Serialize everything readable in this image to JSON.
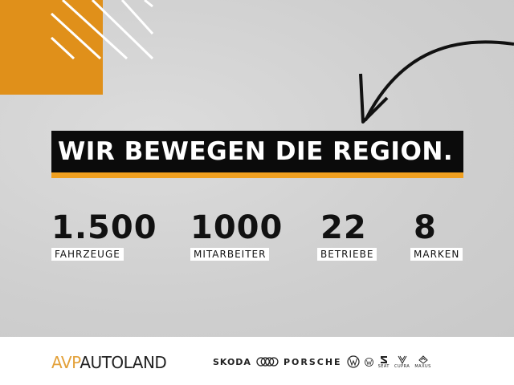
{
  "headline": "WIR BEWEGEN DIE REGION.",
  "stats": [
    {
      "value": "1.500",
      "label": "FAHRZEUGE"
    },
    {
      "value": "1000",
      "label": "MITARBEITER"
    },
    {
      "value": "22",
      "label": "BETRIEBE"
    },
    {
      "value": "8",
      "label": "MARKEN"
    }
  ],
  "footer": {
    "logo_part1": "AVP",
    "logo_part2": "AUTOLAND",
    "brands": [
      "SKODA",
      "PORSCHE",
      "SEAT",
      "CUPRA",
      "MAXUS"
    ],
    "icons": [
      "audi-rings-icon",
      "vw-icon",
      "vw-commercial-icon",
      "seat-icon",
      "cupra-icon",
      "maxus-icon"
    ]
  },
  "colors": {
    "accent_orange": "#e0901a",
    "banner_black": "#0b0b0b",
    "underline_orange": "#f0a020"
  }
}
